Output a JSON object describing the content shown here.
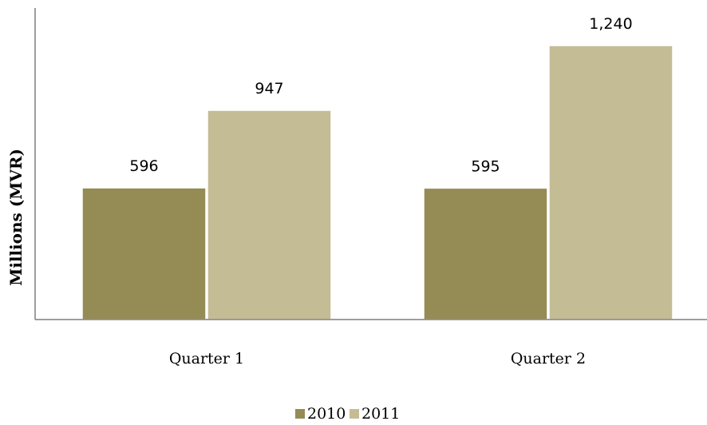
{
  "chart_data": {
    "type": "bar",
    "categories": [
      "Quarter 1",
      "Quarter 2"
    ],
    "series": [
      {
        "name": "2010",
        "values": [
          596,
          595
        ],
        "value_labels": [
          "596",
          "595"
        ],
        "color": "#958b55"
      },
      {
        "name": "2011",
        "values": [
          947,
          1240
        ],
        "value_labels": [
          "947",
          "1,240"
        ],
        "color": "#c4bc95"
      }
    ],
    "ylabel": "Millions (MVR)",
    "xlabel": "",
    "ylim": [
      0,
      1300
    ],
    "grid": false,
    "legend_position": "bottom"
  }
}
